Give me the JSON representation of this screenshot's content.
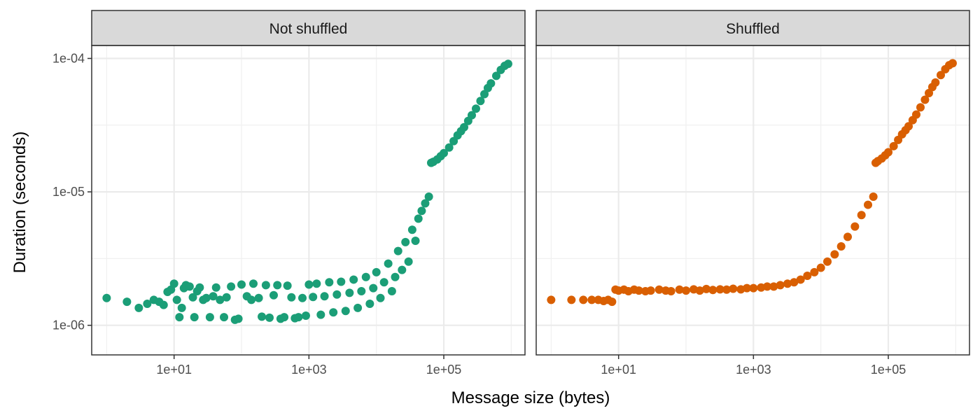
{
  "chart_data": {
    "type": "scatter",
    "xlabel": "Message size (bytes)",
    "ylabel": "Duration (seconds)",
    "x_scale": "log10",
    "y_scale": "log10",
    "xlim": [
      0.6,
      1600000
    ],
    "ylim": [
      6e-07,
      0.000125
    ],
    "x_ticks": [
      10,
      1000,
      100000
    ],
    "x_tick_labels": [
      "1e+01",
      "1e+03",
      "1e+05"
    ],
    "y_ticks": [
      1e-06,
      1e-05,
      0.0001
    ],
    "y_tick_labels": [
      "1e-06",
      "1e-05",
      "1e-04"
    ],
    "grid": true,
    "legend": "none",
    "panels": [
      {
        "title": "Not shuffled",
        "color": "#1b9e77",
        "points": [
          [
            1,
            1.6e-06
          ],
          [
            2,
            1.5e-06
          ],
          [
            3,
            1.35e-06
          ],
          [
            4,
            1.45e-06
          ],
          [
            5,
            1.55e-06
          ],
          [
            6,
            1.5e-06
          ],
          [
            7,
            1.42e-06
          ],
          [
            8,
            1.78e-06
          ],
          [
            9,
            1.85e-06
          ],
          [
            10,
            2.05e-06
          ],
          [
            11,
            1.55e-06
          ],
          [
            12,
            1.15e-06
          ],
          [
            13,
            1.35e-06
          ],
          [
            14,
            1.9e-06
          ],
          [
            15,
            2e-06
          ],
          [
            17,
            1.95e-06
          ],
          [
            19,
            1.62e-06
          ],
          [
            20,
            1.15e-06
          ],
          [
            22,
            1.8e-06
          ],
          [
            24,
            1.92e-06
          ],
          [
            27,
            1.55e-06
          ],
          [
            30,
            1.6e-06
          ],
          [
            34,
            1.15e-06
          ],
          [
            38,
            1.65e-06
          ],
          [
            42,
            1.92e-06
          ],
          [
            48,
            1.55e-06
          ],
          [
            55,
            1.15e-06
          ],
          [
            60,
            1.62e-06
          ],
          [
            70,
            1.95e-06
          ],
          [
            80,
            1.1e-06
          ],
          [
            90,
            1.12e-06
          ],
          [
            100,
            2.02e-06
          ],
          [
            120,
            1.65e-06
          ],
          [
            140,
            1.55e-06
          ],
          [
            150,
            2.05e-06
          ],
          [
            180,
            1.6e-06
          ],
          [
            200,
            1.16e-06
          ],
          [
            230,
            2e-06
          ],
          [
            260,
            1.14e-06
          ],
          [
            300,
            1.68e-06
          ],
          [
            340,
            2e-06
          ],
          [
            380,
            1.12e-06
          ],
          [
            430,
            1.15e-06
          ],
          [
            480,
            1.98e-06
          ],
          [
            550,
            1.62e-06
          ],
          [
            620,
            1.13e-06
          ],
          [
            700,
            1.15e-06
          ],
          [
            800,
            1.6e-06
          ],
          [
            900,
            1.18e-06
          ],
          [
            1000,
            2.02e-06
          ],
          [
            1150,
            1.63e-06
          ],
          [
            1300,
            2.05e-06
          ],
          [
            1500,
            1.2e-06
          ],
          [
            1700,
            1.65e-06
          ],
          [
            2000,
            2.1e-06
          ],
          [
            2300,
            1.25e-06
          ],
          [
            2600,
            1.7e-06
          ],
          [
            3000,
            2.12e-06
          ],
          [
            3500,
            1.28e-06
          ],
          [
            4000,
            1.75e-06
          ],
          [
            4600,
            2.2e-06
          ],
          [
            5300,
            1.35e-06
          ],
          [
            6000,
            1.8e-06
          ],
          [
            7000,
            2.3e-06
          ],
          [
            8000,
            1.45e-06
          ],
          [
            9000,
            1.9e-06
          ],
          [
            10000,
            2.5e-06
          ],
          [
            11500,
            1.6e-06
          ],
          [
            13000,
            2.1e-06
          ],
          [
            15000,
            2.9e-06
          ],
          [
            17000,
            1.8e-06
          ],
          [
            19000,
            2.3e-06
          ],
          [
            21000,
            3.6e-06
          ],
          [
            24000,
            2.6e-06
          ],
          [
            27000,
            4.2e-06
          ],
          [
            30000,
            3e-06
          ],
          [
            34000,
            5.2e-06
          ],
          [
            38000,
            4.3e-06
          ],
          [
            42000,
            6.3e-06
          ],
          [
            47000,
            7.2e-06
          ],
          [
            53000,
            8.2e-06
          ],
          [
            60000,
            9.2e-06
          ],
          [
            65000,
            1.65e-05
          ],
          [
            70000,
            1.68e-05
          ],
          [
            80000,
            1.75e-05
          ],
          [
            90000,
            1.85e-05
          ],
          [
            100000,
            1.95e-05
          ],
          [
            120000,
            2.15e-05
          ],
          [
            140000,
            2.4e-05
          ],
          [
            160000,
            2.65e-05
          ],
          [
            180000,
            2.85e-05
          ],
          [
            200000,
            3.05e-05
          ],
          [
            230000,
            3.4e-05
          ],
          [
            260000,
            3.75e-05
          ],
          [
            300000,
            4.2e-05
          ],
          [
            350000,
            4.8e-05
          ],
          [
            400000,
            5.4e-05
          ],
          [
            450000,
            6e-05
          ],
          [
            500000,
            6.5e-05
          ],
          [
            600000,
            7.4e-05
          ],
          [
            700000,
            8.2e-05
          ],
          [
            800000,
            8.8e-05
          ],
          [
            900000,
            9.1e-05
          ]
        ]
      },
      {
        "title": "Shuffled",
        "color": "#d95f02",
        "points": [
          [
            1,
            1.55e-06
          ],
          [
            2,
            1.55e-06
          ],
          [
            3,
            1.55e-06
          ],
          [
            4,
            1.55e-06
          ],
          [
            5,
            1.55e-06
          ],
          [
            6,
            1.52e-06
          ],
          [
            7,
            1.55e-06
          ],
          [
            8,
            1.5e-06
          ],
          [
            9,
            1.85e-06
          ],
          [
            10,
            1.82e-06
          ],
          [
            12,
            1.85e-06
          ],
          [
            14,
            1.8e-06
          ],
          [
            17,
            1.85e-06
          ],
          [
            20,
            1.82e-06
          ],
          [
            25,
            1.8e-06
          ],
          [
            30,
            1.82e-06
          ],
          [
            40,
            1.85e-06
          ],
          [
            50,
            1.82e-06
          ],
          [
            60,
            1.8e-06
          ],
          [
            80,
            1.85e-06
          ],
          [
            100,
            1.82e-06
          ],
          [
            130,
            1.86e-06
          ],
          [
            160,
            1.82e-06
          ],
          [
            200,
            1.87e-06
          ],
          [
            250,
            1.84e-06
          ],
          [
            320,
            1.86e-06
          ],
          [
            400,
            1.85e-06
          ],
          [
            500,
            1.88e-06
          ],
          [
            650,
            1.86e-06
          ],
          [
            800,
            1.9e-06
          ],
          [
            1000,
            1.9e-06
          ],
          [
            1300,
            1.92e-06
          ],
          [
            1600,
            1.95e-06
          ],
          [
            2000,
            1.95e-06
          ],
          [
            2500,
            2e-06
          ],
          [
            3200,
            2.05e-06
          ],
          [
            4000,
            2.1e-06
          ],
          [
            5000,
            2.2e-06
          ],
          [
            6300,
            2.35e-06
          ],
          [
            8000,
            2.5e-06
          ],
          [
            10000,
            2.7e-06
          ],
          [
            12500,
            3e-06
          ],
          [
            16000,
            3.4e-06
          ],
          [
            20000,
            3.9e-06
          ],
          [
            25000,
            4.6e-06
          ],
          [
            32000,
            5.5e-06
          ],
          [
            40000,
            6.7e-06
          ],
          [
            50000,
            8e-06
          ],
          [
            60000,
            9.2e-06
          ],
          [
            65000,
            1.65e-05
          ],
          [
            70000,
            1.7e-05
          ],
          [
            80000,
            1.78e-05
          ],
          [
            90000,
            1.88e-05
          ],
          [
            100000,
            1.98e-05
          ],
          [
            120000,
            2.2e-05
          ],
          [
            140000,
            2.45e-05
          ],
          [
            160000,
            2.7e-05
          ],
          [
            180000,
            2.9e-05
          ],
          [
            200000,
            3.1e-05
          ],
          [
            230000,
            3.45e-05
          ],
          [
            260000,
            3.8e-05
          ],
          [
            300000,
            4.3e-05
          ],
          [
            350000,
            4.9e-05
          ],
          [
            400000,
            5.5e-05
          ],
          [
            450000,
            6.1e-05
          ],
          [
            500000,
            6.6e-05
          ],
          [
            600000,
            7.5e-05
          ],
          [
            700000,
            8.3e-05
          ],
          [
            800000,
            8.9e-05
          ],
          [
            900000,
            9.2e-05
          ]
        ]
      }
    ]
  }
}
